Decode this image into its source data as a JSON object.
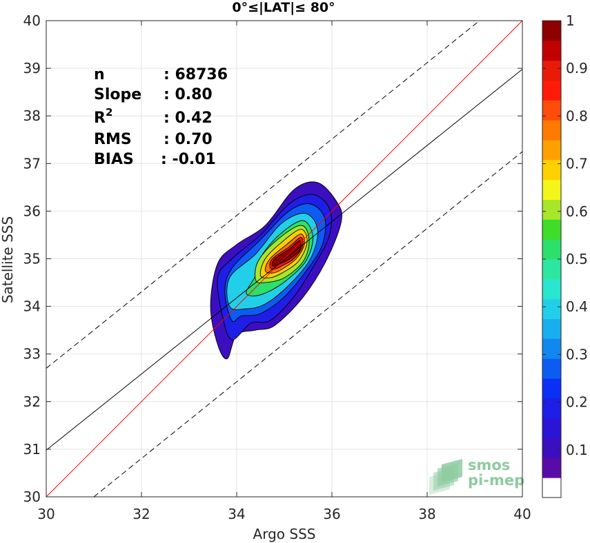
{
  "chart_data": {
    "type": "contour",
    "title": "0°≤|LAT|≤ 80°",
    "xlabel": "Argo SSS",
    "ylabel": "Satellite SSS",
    "xlim": [
      30,
      40
    ],
    "ylim": [
      30,
      40
    ],
    "xticks": [
      "30",
      "32",
      "34",
      "36",
      "38",
      "40"
    ],
    "yticks": [
      "30",
      "31",
      "32",
      "33",
      "34",
      "35",
      "36",
      "37",
      "38",
      "39",
      "40"
    ],
    "grid": true,
    "stats": [
      {
        "key": "n",
        "value": ": 68736"
      },
      {
        "key": "Slope",
        "value": ": 0.80"
      },
      {
        "key": "R",
        "sup": "2",
        "value": ": 0.42"
      },
      {
        "key": "RMS",
        "value": ": 0.70"
      },
      {
        "key": "BIAS",
        "value": ": -0.01"
      }
    ],
    "lines": [
      {
        "name": "one-to-one",
        "color": "#ff0000",
        "dash": false,
        "points": [
          [
            30,
            30
          ],
          [
            40,
            40
          ]
        ]
      },
      {
        "name": "regression",
        "color": "#000000",
        "dash": false,
        "points": [
          [
            30,
            30.98
          ],
          [
            40,
            38.98
          ]
        ]
      },
      {
        "name": "upper-bound",
        "color": "#000000",
        "dash": true,
        "points": [
          [
            30,
            32.7
          ],
          [
            39.1,
            40
          ]
        ]
      },
      {
        "name": "lower-bound",
        "color": "#000000",
        "dash": true,
        "points": [
          [
            31.0,
            30
          ],
          [
            40,
            37.25
          ]
        ]
      }
    ],
    "contours": [
      {
        "level": 0.05,
        "color": "#3b0fbf",
        "points": [
          [
            33.8,
            32.9
          ],
          [
            33.6,
            33.2
          ],
          [
            33.45,
            34.0
          ],
          [
            33.6,
            34.9
          ],
          [
            34.0,
            35.3
          ],
          [
            34.6,
            35.7
          ],
          [
            35.2,
            36.45
          ],
          [
            35.7,
            36.6
          ],
          [
            36.1,
            36.2
          ],
          [
            36.2,
            35.8
          ],
          [
            35.9,
            35.0
          ],
          [
            35.4,
            34.2
          ],
          [
            34.8,
            33.6
          ],
          [
            34.4,
            33.5
          ],
          [
            34.0,
            33.4
          ]
        ]
      },
      {
        "level": 0.15,
        "color": "#1e1ee6",
        "points": [
          [
            33.9,
            33.3
          ],
          [
            33.7,
            33.8
          ],
          [
            33.6,
            34.6
          ],
          [
            33.9,
            35.0
          ],
          [
            34.5,
            35.5
          ],
          [
            35.1,
            36.15
          ],
          [
            35.6,
            36.35
          ],
          [
            35.95,
            36.05
          ],
          [
            35.95,
            35.5
          ],
          [
            35.65,
            34.9
          ],
          [
            35.2,
            34.2
          ],
          [
            34.7,
            33.7
          ],
          [
            34.3,
            33.65
          ]
        ]
      },
      {
        "level": 0.25,
        "color": "#0d5cf2",
        "points": [
          [
            33.9,
            33.7
          ],
          [
            33.75,
            34.3
          ],
          [
            33.9,
            34.8
          ],
          [
            34.5,
            35.4
          ],
          [
            35.1,
            36.0
          ],
          [
            35.55,
            36.15
          ],
          [
            35.85,
            35.85
          ],
          [
            35.8,
            35.3
          ],
          [
            35.5,
            34.8
          ],
          [
            35.0,
            34.2
          ],
          [
            34.5,
            33.85
          ],
          [
            34.1,
            33.8
          ]
        ]
      },
      {
        "level": 0.35,
        "color": "#22cfe8",
        "points": [
          [
            33.85,
            34.0
          ],
          [
            33.85,
            34.6
          ],
          [
            34.4,
            35.1
          ],
          [
            34.95,
            35.75
          ],
          [
            35.45,
            35.95
          ],
          [
            35.7,
            35.6
          ],
          [
            35.55,
            35.0
          ],
          [
            35.1,
            34.45
          ],
          [
            34.6,
            34.05
          ],
          [
            34.2,
            33.95
          ]
        ]
      },
      {
        "level": 0.45,
        "color": "#2de06b",
        "points": [
          [
            34.2,
            34.3
          ],
          [
            34.4,
            34.65
          ],
          [
            34.55,
            35.1
          ],
          [
            34.95,
            35.55
          ],
          [
            35.4,
            35.8
          ],
          [
            35.6,
            35.45
          ],
          [
            35.45,
            34.95
          ],
          [
            35.05,
            34.55
          ],
          [
            34.65,
            34.3
          ],
          [
            34.35,
            34.22
          ]
        ]
      },
      {
        "level": 0.55,
        "color": "#a8e62a",
        "points": [
          [
            34.4,
            34.55
          ],
          [
            34.45,
            34.95
          ],
          [
            34.85,
            35.4
          ],
          [
            35.35,
            35.7
          ],
          [
            35.52,
            35.4
          ],
          [
            35.4,
            34.95
          ],
          [
            35.0,
            34.6
          ],
          [
            34.6,
            34.5
          ]
        ]
      },
      {
        "level": 0.65,
        "color": "#ffd000",
        "points": [
          [
            34.5,
            34.65
          ],
          [
            34.6,
            35.0
          ],
          [
            34.95,
            35.35
          ],
          [
            35.35,
            35.62
          ],
          [
            35.48,
            35.35
          ],
          [
            35.3,
            34.95
          ],
          [
            34.95,
            34.7
          ],
          [
            34.7,
            34.6
          ]
        ]
      },
      {
        "level": 0.75,
        "color": "#ff7a00",
        "points": [
          [
            34.6,
            34.75
          ],
          [
            34.7,
            35.0
          ],
          [
            35.05,
            35.3
          ],
          [
            35.35,
            35.52
          ],
          [
            35.42,
            35.3
          ],
          [
            35.25,
            35.0
          ],
          [
            34.95,
            34.78
          ],
          [
            34.75,
            34.7
          ]
        ]
      },
      {
        "level": 0.85,
        "color": "#e81a0a",
        "points": [
          [
            34.7,
            34.82
          ],
          [
            34.75,
            35.0
          ],
          [
            35.1,
            35.25
          ],
          [
            35.35,
            35.45
          ],
          [
            35.38,
            35.25
          ],
          [
            35.2,
            35.0
          ],
          [
            34.95,
            34.85
          ],
          [
            34.8,
            34.78
          ]
        ]
      },
      {
        "level": 0.95,
        "color": "#8f0000",
        "points": [
          [
            34.75,
            34.85
          ],
          [
            34.8,
            35.0
          ],
          [
            35.1,
            35.2
          ],
          [
            35.32,
            35.38
          ],
          [
            35.33,
            35.2
          ],
          [
            35.15,
            35.02
          ],
          [
            34.92,
            34.9
          ]
        ]
      }
    ],
    "colorbar": {
      "ticks": [
        "0.1",
        "0.2",
        "0.3",
        "0.4",
        "0.5",
        "0.6",
        "0.7",
        "0.8",
        "0.9",
        "1"
      ],
      "tick_values": [
        0.1,
        0.2,
        0.3,
        0.4,
        0.5,
        0.6,
        0.7,
        0.8,
        0.9,
        1.0
      ],
      "range": [
        0,
        1
      ],
      "bands": [
        "#ffffff",
        "#5a0aa8",
        "#3b0fbf",
        "#2a14d6",
        "#1e1ee6",
        "#0a30f5",
        "#0d5cf2",
        "#1088ee",
        "#1aaef0",
        "#22cfe8",
        "#28e6d0",
        "#2de6a0",
        "#2de06b",
        "#3fdc2a",
        "#a8e62a",
        "#f4f51a",
        "#ffd000",
        "#ffa000",
        "#ff7a00",
        "#ff4c0a",
        "#ff1a0a",
        "#e81a0a",
        "#c00000",
        "#8f0000"
      ]
    },
    "logo": {
      "line1": "smos",
      "line2": "pi-mep",
      "color": "#8fcaa0"
    }
  }
}
